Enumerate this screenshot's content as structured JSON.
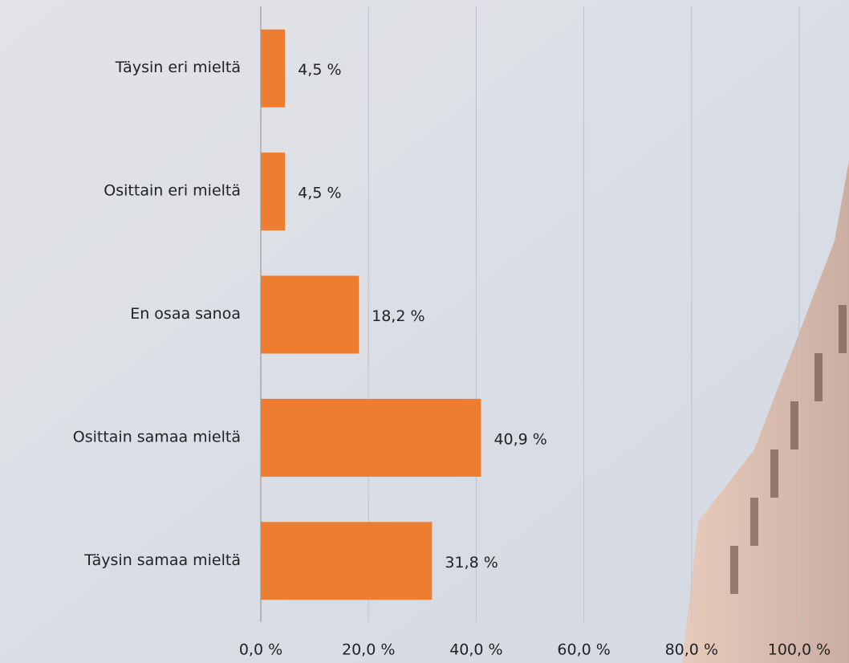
{
  "chart_data": {
    "type": "bar",
    "orientation": "horizontal",
    "categories": [
      "Täysin eri mieltä",
      "Osittain eri mieltä",
      "En osaa sanoa",
      "Osittain samaa mieltä",
      "Täysin samaa mieltä"
    ],
    "values": [
      4.5,
      4.5,
      18.2,
      40.9,
      31.8
    ],
    "value_labels": [
      "4,5 %",
      "4,5 %",
      "18,2 %",
      "40,9 %",
      "31,8 %"
    ],
    "color": "#ed7d31",
    "xlim": [
      0,
      100
    ],
    "xticks": [
      {
        "value": 0,
        "label": "0,0 %"
      },
      {
        "value": 20,
        "label": "20,0 %"
      },
      {
        "value": 40,
        "label": "40,0 %"
      },
      {
        "value": 60,
        "label": "60,0 %"
      },
      {
        "value": 80,
        "label": "80,0 %"
      },
      {
        "value": 100,
        "label": "100,0 %"
      }
    ],
    "grid": true
  }
}
